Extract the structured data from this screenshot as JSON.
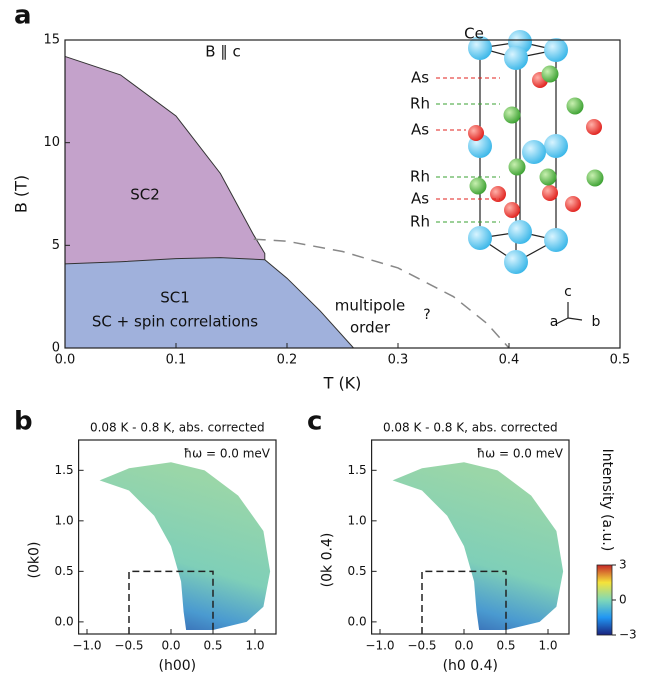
{
  "chart_data": [
    {
      "type": "area",
      "panel": "a",
      "xlabel": "T (K)",
      "ylabel": "B (T)",
      "xlim": [
        0,
        0.5
      ],
      "ylim": [
        0,
        15
      ],
      "xticks": [
        {
          "value": 0,
          "label": "0.0"
        },
        0.1,
        0.2,
        0.3,
        0.4,
        0.5
      ],
      "yticks": [
        0,
        5,
        10,
        15
      ],
      "series": [
        {
          "x": [
            0,
            0.05,
            0.1,
            0.14,
            0.17,
            0.18
          ],
          "values": [
            14.2,
            13.3,
            11.3,
            8.5,
            5.5,
            4.6
          ],
          "color": "#c4a2cb",
          "fill": true
        },
        {
          "x": [
            0,
            0.05,
            0.1,
            0.14,
            0.18,
            0.2,
            0.23,
            0.26
          ],
          "values": [
            4.1,
            4.2,
            4.35,
            4.4,
            4.3,
            3.4,
            1.8,
            0
          ],
          "color": "#a0b1dc",
          "fill": true
        },
        {
          "x": [
            0.17,
            0.2,
            0.25,
            0.3,
            0.35,
            0.38,
            0.4
          ],
          "values": [
            5.3,
            5.2,
            4.7,
            3.9,
            2.5,
            1.2,
            0
          ],
          "color": "#888888",
          "fill": false,
          "dashed": true
        }
      ],
      "annotations": [
        "B ∥ c",
        "SC2",
        "SC1",
        "SC + spin correlations",
        "multipole",
        "order",
        "?"
      ],
      "inset": {
        "top_label": "Ce",
        "atom_labels": [
          "As",
          "Rh",
          "As",
          "Rh",
          "As",
          "Rh"
        ],
        "axes": [
          "c",
          "a",
          "b"
        ]
      }
    },
    {
      "type": "heatmap",
      "panel": "b",
      "title": "0.08 K - 0.8 K, abs. corrected",
      "annotation": "ħω = 0.0 meV",
      "xlabel": "(h00)",
      "ylabel": "(0k0)",
      "xlim": [
        -1.1,
        1.25
      ],
      "ylim": [
        -0.12,
        1.8
      ],
      "xticks": [
        {
          "value": -1,
          "label": "−1.0"
        },
        {
          "value": -0.5,
          "label": "−0.5"
        },
        {
          "value": 0,
          "label": "0.0"
        },
        0.5,
        {
          "value": 1,
          "label": "1.0"
        }
      ],
      "yticks": [
        {
          "value": 0,
          "label": "0.0"
        },
        0.5,
        {
          "value": 1,
          "label": "1.0"
        },
        1.5
      ],
      "region": {
        "x": [
          -0.5,
          0.5
        ],
        "y": [
          -0.12,
          0.5
        ]
      }
    },
    {
      "type": "heatmap",
      "panel": "c",
      "title": "0.08 K - 0.8 K, abs. corrected",
      "annotation": "ħω = 0.0 meV",
      "xlabel": "(h0 0.4)",
      "ylabel": "(0k 0.4)",
      "xlim": [
        -1.1,
        1.25
      ],
      "ylim": [
        -0.12,
        1.8
      ],
      "xticks": [
        {
          "value": -1,
          "label": "−1.0"
        },
        {
          "value": -0.5,
          "label": "−0.5"
        },
        {
          "value": 0,
          "label": "0.0"
        },
        0.5,
        {
          "value": 1,
          "label": "1.0"
        }
      ],
      "yticks": [
        {
          "value": 0,
          "label": "0.0"
        },
        0.5,
        {
          "value": 1,
          "label": "1.0"
        },
        1.5
      ],
      "region": {
        "x": [
          -0.5,
          0.5
        ],
        "y": [
          -0.12,
          0.5
        ]
      },
      "colorbar": {
        "label": "Intensity (a.u.)",
        "clim": [
          -3,
          3
        ],
        "ticks": [
          {
            "value": -3,
            "label": "−3"
          },
          0,
          3
        ]
      }
    }
  ]
}
